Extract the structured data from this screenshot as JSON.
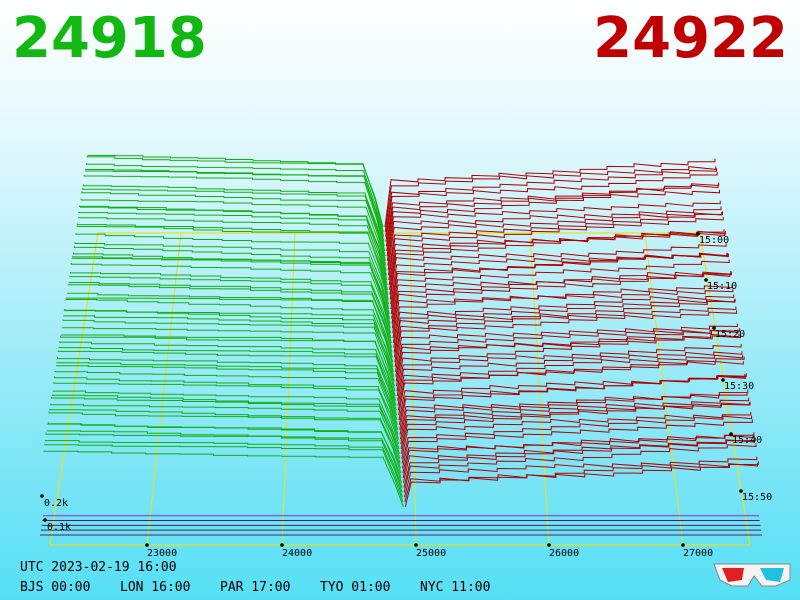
{
  "bid_price": "24918",
  "ask_price": "24922",
  "price_axis": {
    "ticks": [
      "23000",
      "24000",
      "25000",
      "26000",
      "27000"
    ]
  },
  "depth_axis": {
    "ticks": [
      "0.2k",
      "0.1k"
    ]
  },
  "time_axis": {
    "ticks": [
      "15:00",
      "15:10",
      "15:20",
      "15:30",
      "15:40",
      "15:50"
    ]
  },
  "footer": {
    "utc": "UTC 2023-02-19 16:00",
    "clocks": [
      "BJS 00:00",
      "LON 16:00",
      "PAR 17:00",
      "TYO 01:00",
      "NYC 11:00"
    ]
  }
}
